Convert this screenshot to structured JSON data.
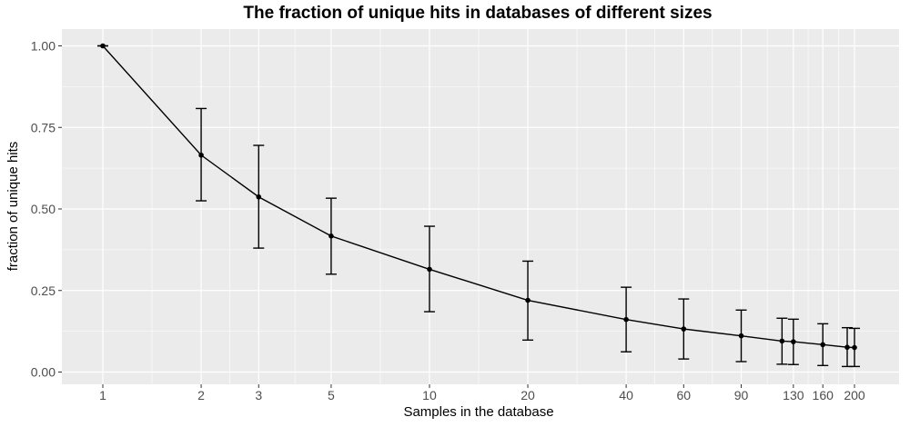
{
  "chart_data": {
    "type": "line",
    "title": "The fraction of unique hits in databases of different sizes",
    "xlabel": "Samples in the database",
    "ylabel": "fraction of unique hits",
    "x_scale": "log",
    "x_ticks": [
      1,
      2,
      3,
      5,
      10,
      20,
      40,
      60,
      90,
      130,
      160,
      200
    ],
    "y_ticks": [
      0.0,
      0.25,
      0.5,
      0.75,
      1.0
    ],
    "y_tick_labels": [
      "0.00",
      "0.25",
      "0.50",
      "0.75",
      "1.00"
    ],
    "ylim": [
      -0.03,
      1.03
    ],
    "grid": true,
    "series": [
      {
        "x": [
          1,
          2,
          3,
          5,
          10,
          20,
          40,
          60,
          90,
          120,
          130,
          160,
          190,
          200
        ],
        "y": [
          1.0,
          0.665,
          0.537,
          0.417,
          0.315,
          0.22,
          0.161,
          0.132,
          0.111,
          0.095,
          0.093,
          0.084,
          0.076,
          0.075
        ],
        "err_low": [
          1.0,
          0.525,
          0.38,
          0.3,
          0.185,
          0.098,
          0.062,
          0.04,
          0.032,
          0.024,
          0.023,
          0.02,
          0.017,
          0.017
        ],
        "err_high": [
          1.0,
          0.808,
          0.695,
          0.533,
          0.447,
          0.34,
          0.26,
          0.224,
          0.19,
          0.165,
          0.162,
          0.148,
          0.136,
          0.134
        ]
      }
    ],
    "colors": {
      "panel_background": "#ebebeb",
      "grid": "#ffffff",
      "line": "#000000",
      "tick_label": "#4d4d4d"
    }
  }
}
